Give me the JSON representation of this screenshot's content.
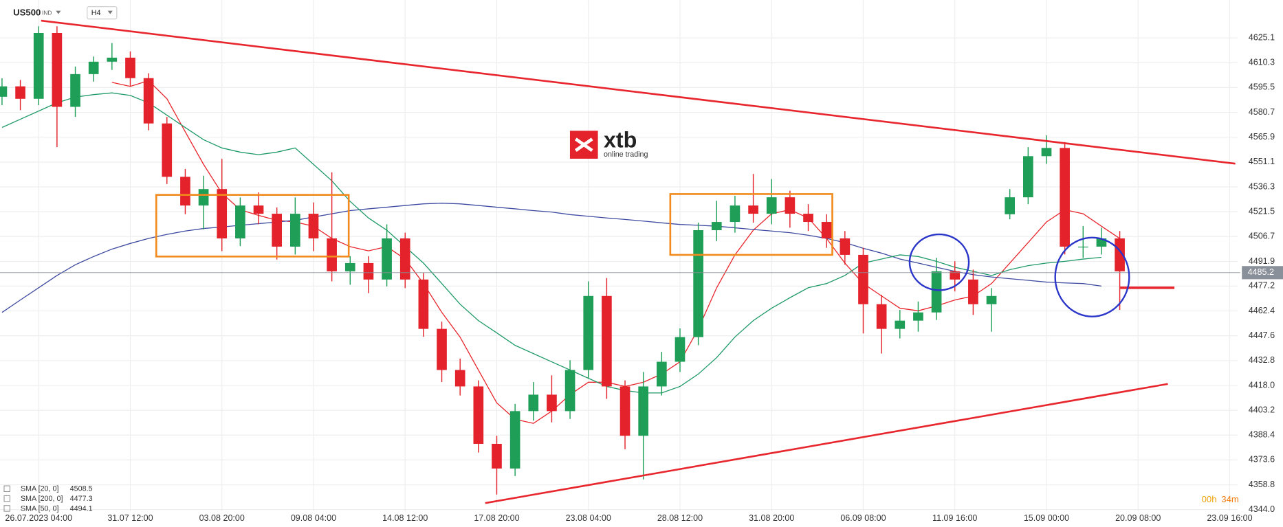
{
  "chart_data": {
    "type": "candlestick",
    "symbol": "US500",
    "market": "IND",
    "interval": "H4",
    "grid": true,
    "up_color": "#1e9e57",
    "down_color": "#e3222b",
    "xlim": [
      -0.44,
      269.76
    ],
    "xticks": [
      {
        "value": 8,
        "label": "26.07.2023 04:00"
      },
      {
        "value": 28,
        "label": "31.07 12:00"
      },
      {
        "value": 48,
        "label": "03.08 20:00"
      },
      {
        "value": 68,
        "label": "09.08 04:00"
      },
      {
        "value": 88,
        "label": "14.08 12:00"
      },
      {
        "value": 108,
        "label": "17.08 20:00"
      },
      {
        "value": 128,
        "label": "23.08 04:00"
      },
      {
        "value": 148,
        "label": "28.08 12:00"
      },
      {
        "value": 168,
        "label": "31.08 20:00"
      },
      {
        "value": 188,
        "label": "06.09 08:00"
      },
      {
        "value": 208,
        "label": "11.09 16:00"
      },
      {
        "value": 228,
        "label": "15.09 00:00"
      },
      {
        "value": 248,
        "label": "20.09 08:00"
      },
      {
        "value": 268,
        "label": "23.09 16:00"
      }
    ],
    "ylim": [
      4333.7,
      4647.6
    ],
    "yticks": [
      4625.1,
      4610.3,
      4595.5,
      4580.7,
      4565.9,
      4551.1,
      4536.3,
      4521.5,
      4506.7,
      4491.9,
      4477.2,
      4462.4,
      4447.6,
      4432.8,
      {
        "value": 4418,
        "label": "4418.0"
      },
      4403.2,
      4388.4,
      4373.6,
      4358.8,
      {
        "value": 4344,
        "label": "4344.0"
      }
    ],
    "x": [
      0,
      4,
      8,
      12,
      16,
      20,
      24,
      28,
      32,
      36,
      40,
      44,
      48,
      52,
      56,
      60,
      64,
      68,
      72,
      76,
      80,
      84,
      88,
      92,
      96,
      100,
      104,
      108,
      112,
      116,
      120,
      124,
      128,
      132,
      136,
      140,
      144,
      148,
      152,
      156,
      160,
      164,
      168,
      172,
      176,
      180,
      184,
      188,
      192,
      196,
      200,
      204,
      208,
      212,
      216,
      220,
      224,
      228,
      232,
      236,
      240,
      244
    ],
    "open": [
      4590.0,
      4596.2,
      4588.8,
      4628.0,
      4584.0,
      4603.5,
      4610.9,
      4613.3,
      4601.1,
      4574.1,
      4542.3,
      4525.2,
      4535.0,
      4505.6,
      4525.2,
      4520.3,
      4500.7,
      4520.3,
      4505.6,
      4486.0,
      4490.9,
      4481.1,
      4505.6,
      4481.1,
      4451.7,
      4427.2,
      4417.4,
      4383.2,
      4368.5,
      4402.7,
      4412.5,
      4402.7,
      4427.2,
      4471.3,
      4417.4,
      4388.0,
      4417.4,
      4432.1,
      4446.8,
      4510.5,
      4515.4,
      4525.2,
      4520.3,
      4530.1,
      4520.3,
      4515.4,
      4505.6,
      4495.8,
      4466.4,
      4451.7,
      4456.6,
      4461.5,
      4486.0,
      4481.1,
      4466.4,
      4520.0,
      4530.1,
      4554.6,
      4559.5,
      4500.7,
      4500.7,
      4505.6
    ],
    "high": [
      4601,
      4600,
      4632,
      4632,
      4608,
      4614,
      4622,
      4617,
      4604,
      4578,
      4547,
      4543,
      4553,
      4530,
      4533,
      4524,
      4530,
      4527,
      4545,
      4495,
      4495,
      4514,
      4509,
      4485,
      4456,
      4434,
      4421,
      4388,
      4407,
      4420,
      4424,
      4433,
      4480,
      4482,
      4421,
      4426,
      4438,
      4452,
      4515,
      4528,
      4531,
      4544,
      4541,
      4534,
      4526,
      4520,
      4510,
      4500,
      4472,
      4463,
      4468,
      4494,
      4492,
      4487,
      4476,
      4535,
      4560,
      4567,
      4563,
      4513,
      4512,
      4510
    ],
    "low": [
      4585,
      4582,
      4585,
      4560,
      4578,
      4599,
      4606,
      4596,
      4570,
      4538,
      4520,
      4511,
      4498,
      4501,
      4514,
      4493,
      4496,
      4498,
      4480,
      4478,
      4473,
      4477,
      4476,
      4447,
      4420,
      4412,
      4378,
      4353,
      4364,
      4397,
      4396,
      4398,
      4422,
      4410,
      4380,
      4362,
      4412,
      4426,
      4442,
      4504,
      4509,
      4515,
      4514,
      4512,
      4510,
      4500,
      4490,
      4449,
      4437,
      4446,
      4450,
      4457,
      4474,
      4460,
      4450,
      4517,
      4526,
      4550,
      4496,
      4494,
      4496,
      4463
    ],
    "close": [
      4596.2,
      4588.8,
      4628.0,
      4584.0,
      4603.5,
      4610.9,
      4613.3,
      4601.1,
      4574.1,
      4542.3,
      4525.2,
      4535.0,
      4505.6,
      4525.2,
      4520.3,
      4500.7,
      4520.3,
      4505.6,
      4486.0,
      4490.9,
      4481.1,
      4505.6,
      4481.1,
      4451.7,
      4427.2,
      4417.4,
      4383.2,
      4368.5,
      4402.7,
      4412.5,
      4402.7,
      4427.2,
      4471.3,
      4417.4,
      4388.0,
      4417.4,
      4432.1,
      4446.8,
      4510.5,
      4515.4,
      4525.2,
      4520.3,
      4530.1,
      4520.3,
      4515.4,
      4505.6,
      4495.8,
      4466.4,
      4451.7,
      4456.6,
      4461.5,
      4486.0,
      4481.1,
      4466.4,
      4471.3,
      4530.1,
      4554.6,
      4559.5,
      4500.7,
      4500.7,
      4505.6,
      4486.0
    ],
    "series": [
      {
        "name": "SMA [20, 0]",
        "last": 4508.5,
        "color": "#e8262d",
        "values": [
          null,
          null,
          null,
          null,
          null,
          null,
          4598.6,
          4596.2,
          4599.6,
          4588.8,
          4569.2,
          4549.7,
          4532.5,
          4522.7,
          4519.3,
          4516.4,
          4515.4,
          4512.9,
          4505.6,
          4500.7,
          4498.2,
          4500.7,
          4493.3,
          4478.7,
          4461.5,
          4446.8,
          4427.2,
          4407.6,
          4397.8,
          4395.4,
          4402.7,
          4412.5,
          4419.9,
          4419.9,
          4417.4,
          4419.9,
          4424.8,
          4432.1,
          4451.7,
          4476.2,
          4495.8,
          4510.5,
          4520.3,
          4522.7,
          4517.8,
          4505.6,
          4490.9,
          4478.7,
          4471.3,
          4464.0,
          4462.5,
          4465.4,
          4468.9,
          4471.3,
          4478.7,
          4490.9,
          4503.1,
          4515.4,
          4522.7,
          4520.3,
          4512.9,
          4505.6
        ]
      },
      {
        "name": "SMA [200, 0]",
        "last": 4477.3,
        "color": "#3d4aa0",
        "values": [
          4461.5,
          4468.9,
          4476.2,
          4483.5,
          4489.9,
          4494.8,
          4499.2,
          4502.6,
          4505.6,
          4508.0,
          4510.0,
          4511.5,
          4512.4,
          4513.4,
          4514.4,
          4515.4,
          4516.4,
          4518.3,
          4520.3,
          4522.2,
          4523.2,
          4524.2,
          4525.2,
          4526.2,
          4526.6,
          4526.2,
          4525.2,
          4524.2,
          4523.2,
          4522.2,
          4521.3,
          4519.8,
          4518.8,
          4517.8,
          4516.9,
          4515.9,
          4514.9,
          4513.9,
          4513.4,
          4512.9,
          4511.9,
          4510.9,
          4510.0,
          4509.0,
          4507.5,
          4505.6,
          4503.1,
          4499.7,
          4496.8,
          4493.3,
          4490.9,
          4488.4,
          4486.0,
          4484.0,
          4482.6,
          4481.6,
          4480.6,
          4479.6,
          4479.1,
          4478.7,
          4477.2,
          null
        ]
      },
      {
        "name": "SMA [50, 0]",
        "last": 4494.1,
        "color": "#1f9a68",
        "values": [
          4571.7,
          4576.6,
          4581.5,
          4586.4,
          4589.8,
          4591.3,
          4592.3,
          4590.8,
          4586.4,
          4579.0,
          4571.7,
          4564.4,
          4559.5,
          4557.0,
          4555.5,
          4557.0,
          4559.5,
          4549.7,
          4539.9,
          4527.6,
          4517.8,
          4510.5,
          4500.7,
          4490.9,
          4478.7,
          4466.4,
          4456.6,
          4449.3,
          4441.9,
          4437.0,
          4432.1,
          4427.2,
          4422.3,
          4417.4,
          4415.0,
          4413.5,
          4413.5,
          4417.4,
          4424.8,
          4434.6,
          4446.8,
          4456.6,
          4464.0,
          4470.3,
          4476.2,
          4478.7,
          4483.5,
          4490.9,
          4493.3,
          4495.8,
          4494.8,
          4491.9,
          4488.4,
          4486.0,
          4483.5,
          4487.0,
          4489.4,
          4490.9,
          4491.9,
          4493.3,
          4494.3,
          null
        ]
      }
    ],
    "last_price": 4485.2,
    "countdown": {
      "hours": "00h",
      "minutes": "34m"
    }
  },
  "watermark": {
    "name": "xtb",
    "tagline": "online trading"
  }
}
